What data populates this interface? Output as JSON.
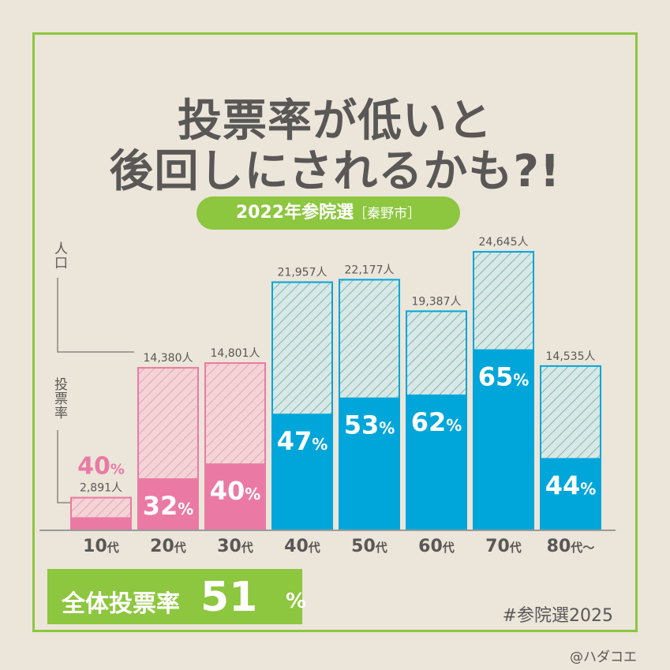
{
  "title": {
    "line1": "投票率が低いと",
    "line2": "後回しにされるかも?!"
  },
  "subtitle": {
    "main": "2022年参院選",
    "paren": "［秦野市］"
  },
  "axes": {
    "population_label": "人口",
    "turnout_label": "投票率"
  },
  "overall": {
    "label": "全体投票率",
    "value": "51",
    "unit": "%"
  },
  "hashtag": "#参院選2025",
  "credit": "@ハダコエ",
  "colors": {
    "frame": "#8dc63f",
    "pink": "#ea7aa4",
    "pink_light": "#f4d3d6",
    "blue": "#00a6d9",
    "blue_light": "#d7e8e6",
    "hatch_blue": "#6dab9f",
    "hatch_pink": "#e39aa7",
    "text": "#5a5856"
  },
  "chart_data": {
    "type": "bar",
    "categories": [
      "10代",
      "20代",
      "30代",
      "40代",
      "50代",
      "60代",
      "70代",
      "80代～"
    ],
    "series": [
      {
        "values": [
          2891,
          14380,
          14801,
          21957,
          22177,
          19387,
          24645,
          14535
        ]
      },
      {
        "values": [
          40,
          32,
          40,
          47,
          53,
          62,
          65,
          44
        ]
      }
    ],
    "population_labels": [
      "2,891人",
      "14,380人",
      "14,801人",
      "21,957人",
      "22,177人",
      "19,387人",
      "24,645人",
      "14,535人"
    ],
    "turnout_labels": [
      "40",
      "32",
      "40",
      "47",
      "53",
      "62",
      "65",
      "44"
    ],
    "turnout_unit": "%",
    "group_colors": [
      "pink",
      "pink",
      "pink",
      "blue",
      "blue",
      "blue",
      "blue",
      "blue"
    ],
    "ylim": [
      0,
      25000
    ],
    "grid": false,
    "legend": "none"
  }
}
